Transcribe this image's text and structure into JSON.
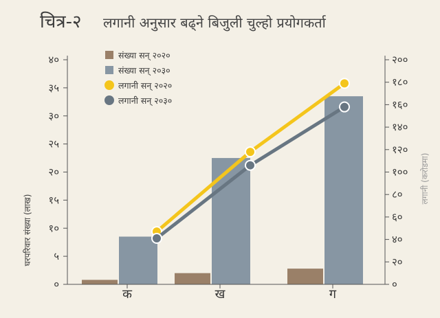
{
  "figure": {
    "title_prefix": "चित्र-२",
    "title": "लगानी अनुसार बढ्ने बिजुली चुल्हो प्रयोगकर्ता"
  },
  "chart_data": {
    "type": "bar+line",
    "categories": [
      "क",
      "ख",
      "ग"
    ],
    "bar_series": [
      {
        "name": "संख्या सन् २०२०",
        "values": [
          0.8,
          2.0,
          2.8
        ],
        "color": "#9a8068"
      },
      {
        "name": "संख्या सन् २०३०",
        "values": [
          8.5,
          22.5,
          33.5
        ],
        "color": "#8796a3"
      }
    ],
    "line_series": [
      {
        "name": "लगानी  सन् २०२०",
        "values": [
          47,
          118,
          179
        ],
        "color": "#f4c51c"
      },
      {
        "name": "लगानी  सन् २०३०",
        "values": [
          41,
          106,
          158
        ],
        "color": "#687682"
      }
    ],
    "ylabel": "घरपरिवार संख्या (लाख)",
    "ylabel_right": "लगानी (करोडमा)",
    "ylim": [
      0,
      40
    ],
    "ylim_right": [
      0,
      200
    ],
    "yticks": [
      "०",
      "५",
      "१०",
      "१५",
      "२०",
      "२५",
      "३०",
      "३५",
      "४०"
    ],
    "yticks_right": [
      "०",
      "२०",
      "४०",
      "६०",
      "८०",
      "१००",
      "१२०",
      "१४०",
      "१६०",
      "१८०",
      "२००"
    ],
    "legend_position": "top-left"
  }
}
